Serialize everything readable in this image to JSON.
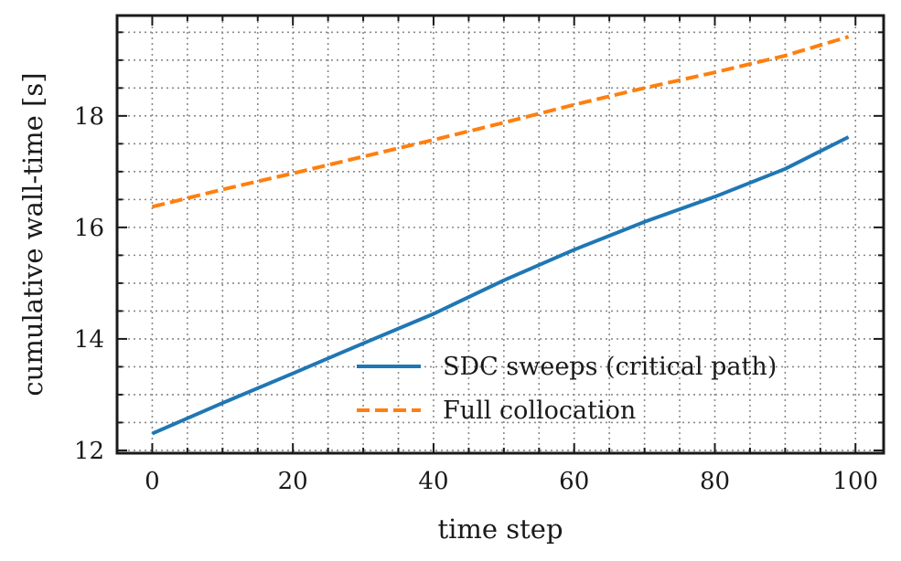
{
  "chart_data": {
    "type": "line",
    "title": "",
    "xlabel": "time step",
    "ylabel": "cumulative wall-time [s]",
    "xlim": [
      -5,
      104
    ],
    "ylim": [
      11.95,
      19.8
    ],
    "x_ticks": [
      0,
      20,
      40,
      60,
      80,
      100
    ],
    "y_ticks": [
      12,
      14,
      16,
      18
    ],
    "x_minor_step": 5,
    "y_minor_step": 0.5,
    "grid": true,
    "grid_style": "dotted, major and minor",
    "legend": "lower right",
    "series": [
      {
        "name": "SDC sweeps (critical path)",
        "color": "#1f77b4",
        "line_style": "solid",
        "x": [
          0,
          10,
          20,
          30,
          40,
          50,
          60,
          70,
          80,
          90,
          99
        ],
        "y": [
          12.3,
          12.85,
          13.38,
          13.92,
          14.45,
          15.05,
          15.6,
          16.1,
          16.55,
          17.05,
          17.62
        ]
      },
      {
        "name": "Full collocation",
        "color": "#ff7f0e",
        "line_style": "dashed",
        "x": [
          0,
          10,
          20,
          30,
          40,
          50,
          60,
          70,
          80,
          90,
          99
        ],
        "y": [
          16.37,
          16.68,
          16.97,
          17.27,
          17.57,
          17.88,
          18.2,
          18.5,
          18.78,
          19.08,
          19.42
        ]
      }
    ]
  }
}
